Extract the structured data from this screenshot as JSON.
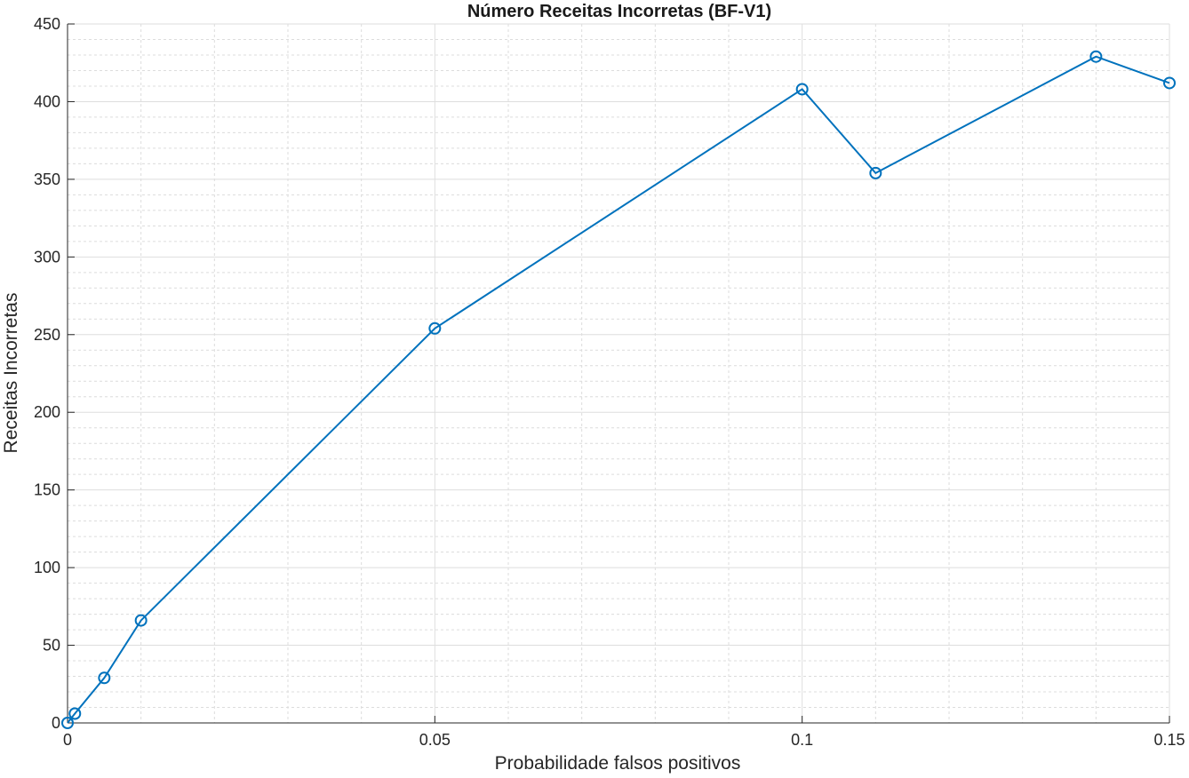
{
  "chart_data": {
    "type": "line",
    "title": "Número Receitas Incorretas (BF-V1)",
    "xlabel": "Probabilidade falsos positivos",
    "ylabel": "Receitas Incorretas",
    "xlim": [
      0,
      0.15
    ],
    "ylim": [
      0,
      450
    ],
    "xticks": [
      0,
      0.05,
      0.1,
      0.15
    ],
    "xtick_labels": [
      "0",
      "0.05",
      "0.1",
      "0.15"
    ],
    "yticks": [
      0,
      50,
      100,
      150,
      200,
      250,
      300,
      350,
      400,
      450
    ],
    "ytick_labels": [
      "0",
      "50",
      "100",
      "150",
      "200",
      "250",
      "300",
      "350",
      "400",
      "450"
    ],
    "grid": true,
    "minor_grid": true,
    "series": [
      {
        "color": "#0072BD",
        "marker": "circle",
        "x": [
          0,
          0.001,
          0.005,
          0.01,
          0.05,
          0.1,
          0.11,
          0.14,
          0.15
        ],
        "y": [
          0,
          6,
          29,
          66,
          254,
          408,
          354,
          429,
          412
        ]
      }
    ]
  }
}
